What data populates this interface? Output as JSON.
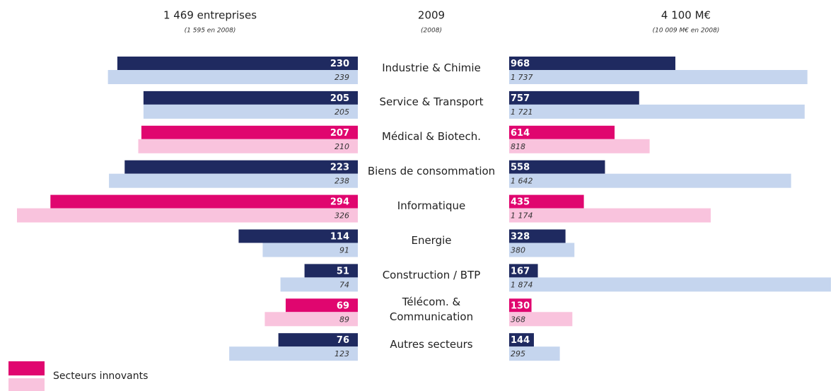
{
  "chart_data": {
    "type": "butterfly",
    "left_title": "1 469 entreprises",
    "left_subtitle": "(1 595 en 2008)",
    "center_title": "2009",
    "center_subtitle": "(2008)",
    "right_title": "4 100 M€",
    "right_subtitle": "(10 009 M€ en 2008)",
    "categories": [
      "Industrie & Chimie",
      "Service & Transport",
      "Médical & Biotech.",
      "Biens de consommation",
      "Informatique",
      "Energie",
      "Construction / BTP",
      "Télécom. &\nCommunication",
      "Autres secteurs"
    ],
    "colors_current": [
      "#1f2a60",
      "#1f2a60",
      "#e0066f",
      "#1f2a60",
      "#e0066f",
      "#1f2a60",
      "#1f2a60",
      "#e0066f",
      "#1f2a60"
    ],
    "colors_previous": [
      "#c5d5ee",
      "#c5d5ee",
      "#f9c3dd",
      "#c5d5ee",
      "#f9c3dd",
      "#c5d5ee",
      "#c5d5ee",
      "#f9c3dd",
      "#c5d5ee"
    ],
    "left": {
      "xlim": [
        0,
        326
      ],
      "current": [
        230,
        205,
        207,
        223,
        294,
        114,
        51,
        69,
        76
      ],
      "previous": [
        239,
        205,
        210,
        238,
        326,
        91,
        74,
        89,
        123
      ]
    },
    "right": {
      "xlim": [
        0,
        1874
      ],
      "current": [
        968,
        757,
        614,
        558,
        435,
        328,
        167,
        130,
        144
      ],
      "previous": [
        1737,
        1721,
        818,
        1642,
        1174,
        380,
        1874,
        368,
        295
      ],
      "previous_labels": [
        "1 737",
        "1 721",
        "818",
        "1 642",
        "1 174",
        "380",
        "1 874",
        "368",
        "295"
      ]
    },
    "legend": [
      {
        "label": "Secteurs innovants",
        "color": "#e0066f"
      }
    ]
  }
}
